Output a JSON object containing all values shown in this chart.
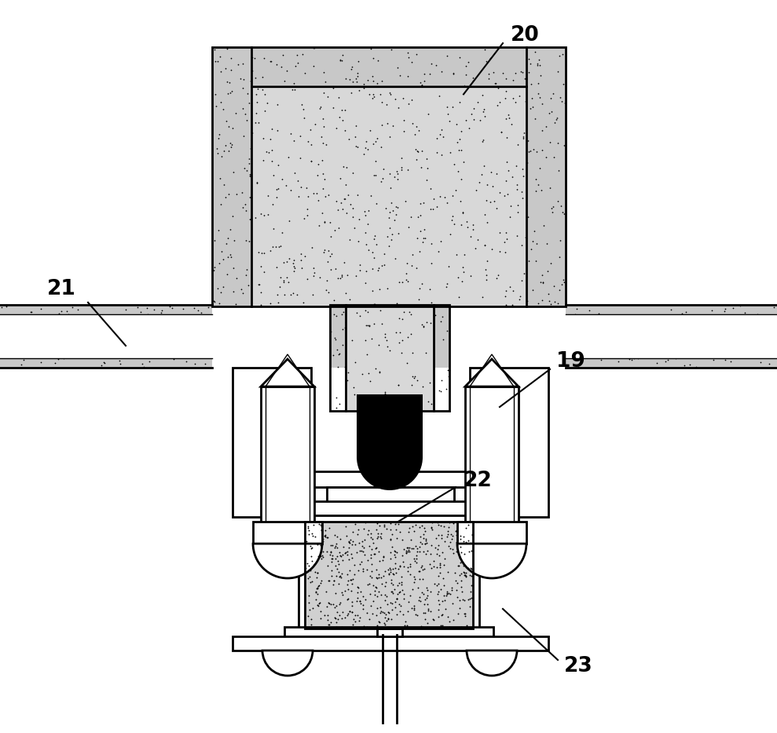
{
  "bg_color": "#ffffff",
  "lc": "#000000",
  "lw_main": 2.0,
  "lw_thin": 1.0,
  "stipple_color": "#c8c8c8",
  "stipple_color2": "#d8d8d8",
  "label_20": "20",
  "label_21": "21",
  "label_19": "19",
  "label_22": "22",
  "label_23": "23"
}
